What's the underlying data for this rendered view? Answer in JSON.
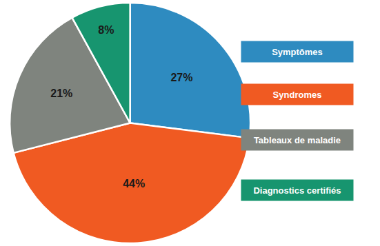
{
  "chart_data": {
    "type": "pie",
    "categories": [
      "Symptômes",
      "Syndromes",
      "Tableaux de maladie",
      "Diagnostics certifiés"
    ],
    "values": [
      27,
      44,
      21,
      8
    ],
    "value_labels": [
      "27%",
      "44%",
      "21%",
      "8%"
    ],
    "colors": [
      "#2e8bc0",
      "#f05a22",
      "#7f847e",
      "#17956f"
    ],
    "data_labels": true,
    "legend": "right"
  }
}
